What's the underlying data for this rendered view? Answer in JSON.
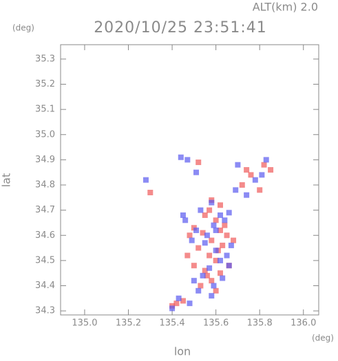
{
  "chart_data": {
    "type": "scatter",
    "title": "2020/10/25 23:51:41",
    "subtitle": "ALT(km) 2.0",
    "y_unit": "(deg)",
    "x_unit": "(deg)",
    "y_label": "lat",
    "x_label": "lon",
    "xlim": [
      134.89,
      136.07
    ],
    "ylim": [
      34.284,
      35.357
    ],
    "xticks": [
      {
        "value": 135.0,
        "label": "135.0"
      },
      135.2,
      135.4,
      135.6,
      135.8,
      {
        "value": 136.0,
        "label": "136.0"
      }
    ],
    "yticks": [
      34.3,
      34.4,
      34.5,
      34.6,
      34.7,
      34.8,
      34.9,
      {
        "value": 35.0,
        "label": "35.0"
      },
      35.1,
      35.2,
      35.3
    ],
    "series": [
      {
        "color": "#f05a5a",
        "x": [
          135.55,
          135.6,
          135.62,
          135.5,
          135.58,
          135.65,
          135.52,
          135.57,
          135.63,
          135.48,
          135.6,
          135.55,
          135.62,
          135.5,
          135.58,
          135.66,
          135.53,
          135.6,
          135.57,
          135.64,
          135.82,
          135.85,
          135.76,
          135.72,
          135.8,
          135.42,
          135.45,
          135.4,
          135.3,
          135.62,
          135.58,
          135.47,
          135.54,
          135.61,
          135.68,
          135.74,
          135.52,
          135.56
        ],
        "values": [
          34.68,
          34.66,
          34.62,
          34.63,
          34.58,
          34.6,
          34.55,
          34.52,
          34.56,
          34.6,
          34.5,
          34.46,
          34.45,
          34.48,
          34.42,
          34.48,
          34.4,
          34.38,
          34.7,
          34.64,
          34.88,
          34.86,
          34.84,
          34.8,
          34.78,
          34.33,
          34.34,
          34.32,
          34.77,
          34.72,
          34.74,
          34.52,
          34.61,
          34.54,
          34.58,
          34.86,
          34.89,
          34.44
        ]
      },
      {
        "color": "#5a5af0",
        "x": [
          135.53,
          135.59,
          135.64,
          135.49,
          135.56,
          135.67,
          135.51,
          135.6,
          135.62,
          135.46,
          135.57,
          135.54,
          135.65,
          135.5,
          135.59,
          135.63,
          135.55,
          135.58,
          135.6,
          135.66,
          135.83,
          135.78,
          135.7,
          135.74,
          135.81,
          135.4,
          135.43,
          135.48,
          135.28,
          135.44,
          135.47,
          135.51,
          135.58,
          135.62,
          135.66,
          135.69,
          135.45,
          135.52
        ],
        "values": [
          34.7,
          34.64,
          34.66,
          34.58,
          34.6,
          34.56,
          34.62,
          34.54,
          34.5,
          34.66,
          34.47,
          34.44,
          34.52,
          34.42,
          34.4,
          34.43,
          34.57,
          34.36,
          34.62,
          34.69,
          34.9,
          34.82,
          34.88,
          34.76,
          34.84,
          34.31,
          34.35,
          34.33,
          34.82,
          34.91,
          34.9,
          34.85,
          34.73,
          34.68,
          34.48,
          34.78,
          34.68,
          34.38
        ]
      }
    ]
  }
}
